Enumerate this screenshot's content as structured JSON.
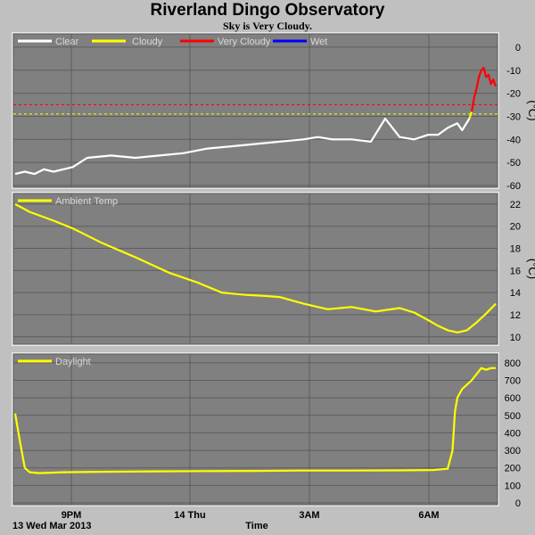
{
  "title": "Riverland Dingo Observatory",
  "subtitle": "Sky is Very Cloudy.",
  "footer": {
    "date_label": "13 Wed Mar 2013",
    "x_axis_label": "Time"
  },
  "x_axis": {
    "ticks": [
      "9PM",
      "14 Thu",
      "3AM",
      "6AM"
    ]
  },
  "colors": {
    "clear": "#ffffff",
    "cloudy": "#ffff00",
    "very_cloudy": "#ff0000",
    "wet": "#0000ff"
  },
  "chart_data": [
    {
      "type": "line",
      "legend": [
        "Clear",
        "Cloudy",
        "Very Cloudy",
        "Wet"
      ],
      "unit": "(°C)",
      "ylim": [
        -60,
        5
      ],
      "yticks": [
        0,
        -10,
        -20,
        -30,
        -40,
        -50,
        -60
      ],
      "thresholds": [
        {
          "value": -25,
          "color": "#ff0000"
        },
        {
          "value": -29,
          "color": "#ffff00"
        }
      ],
      "series": [
        {
          "name": "Clear",
          "x": [
            0,
            0.02,
            0.04,
            0.06,
            0.08,
            0.1,
            0.12,
            0.15,
            0.2,
            0.25,
            0.3,
            0.35,
            0.4,
            0.45,
            0.5,
            0.55,
            0.6,
            0.63,
            0.66,
            0.7,
            0.74,
            0.77,
            0.8,
            0.83,
            0.86,
            0.88,
            0.9,
            0.92,
            0.93,
            0.945
          ],
          "values": [
            -55,
            -54,
            -55,
            -53,
            -54,
            -53,
            -52,
            -48,
            -47,
            -48,
            -47,
            -46,
            -44,
            -43,
            -42,
            -41,
            -40,
            -39,
            -40,
            -40,
            -41,
            -31,
            -39,
            -40,
            -38,
            -38,
            -35,
            -33,
            -36,
            -31
          ]
        },
        {
          "name": "Cloudy",
          "x": [
            0.945,
            0.95
          ],
          "values": [
            -31,
            -28
          ]
        },
        {
          "name": "Very Cloudy",
          "x": [
            0.95,
            0.955,
            0.96,
            0.965,
            0.97,
            0.975,
            0.98,
            0.985,
            0.99,
            0.995,
            1.0
          ],
          "values": [
            -28,
            -22,
            -18,
            -13,
            -10,
            -9,
            -13,
            -12,
            -16,
            -14,
            -17
          ]
        }
      ]
    },
    {
      "type": "line",
      "legend": [
        "Ambient Temp"
      ],
      "unit": "(°C)",
      "ylim": [
        9.5,
        22.8
      ],
      "yticks": [
        22,
        20,
        18,
        16,
        14,
        12,
        10
      ],
      "series": [
        {
          "name": "Ambient Temp",
          "x": [
            0,
            0.03,
            0.08,
            0.12,
            0.18,
            0.25,
            0.32,
            0.38,
            0.43,
            0.48,
            0.52,
            0.55,
            0.6,
            0.65,
            0.7,
            0.75,
            0.8,
            0.83,
            0.86,
            0.88,
            0.9,
            0.92,
            0.94,
            0.96,
            0.98,
            1.0
          ],
          "values": [
            22,
            21.3,
            20.5,
            19.8,
            18.5,
            17.2,
            15.8,
            14.9,
            14,
            13.8,
            13.7,
            13.6,
            13,
            12.5,
            12.7,
            12.3,
            12.6,
            12.2,
            11.5,
            11,
            10.6,
            10.4,
            10.6,
            11.3,
            12.1,
            13
          ]
        }
      ]
    },
    {
      "type": "line",
      "legend": [
        "Daylight"
      ],
      "unit": "",
      "ylim": [
        0,
        840
      ],
      "yticks": [
        800,
        700,
        600,
        500,
        400,
        300,
        200,
        100,
        0
      ],
      "series": [
        {
          "name": "Daylight",
          "x": [
            0,
            0.01,
            0.02,
            0.03,
            0.05,
            0.1,
            0.2,
            0.3,
            0.4,
            0.5,
            0.6,
            0.7,
            0.8,
            0.87,
            0.9,
            0.91,
            0.915,
            0.92,
            0.93,
            0.95,
            0.97,
            0.98,
            0.99,
            1.0
          ],
          "values": [
            510,
            350,
            200,
            175,
            170,
            175,
            178,
            180,
            182,
            183,
            185,
            185,
            186,
            188,
            195,
            300,
            520,
            600,
            650,
            700,
            770,
            760,
            770,
            770
          ]
        }
      ]
    }
  ]
}
